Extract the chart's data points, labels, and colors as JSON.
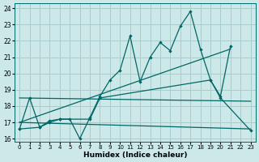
{
  "title": "",
  "xlabel": "Humidex (Indice chaleur)",
  "background_color": "#cde8e8",
  "grid_color": "#a8cccc",
  "line_color": "#006666",
  "xlim": [
    -0.5,
    23.5
  ],
  "ylim": [
    15.8,
    24.3
  ],
  "xticks": [
    0,
    1,
    2,
    3,
    4,
    5,
    6,
    7,
    8,
    9,
    10,
    11,
    12,
    13,
    14,
    15,
    16,
    17,
    18,
    19,
    20,
    21,
    22,
    23
  ],
  "yticks": [
    16,
    17,
    18,
    19,
    20,
    21,
    22,
    23,
    24
  ],
  "line1_x": [
    0,
    1,
    2,
    3,
    4,
    5,
    6,
    7,
    8,
    9,
    10,
    11,
    12,
    13,
    14,
    15,
    16,
    17,
    18,
    19,
    20,
    21
  ],
  "line1_y": [
    16.6,
    18.5,
    16.7,
    17.1,
    17.2,
    17.2,
    16.0,
    17.3,
    18.6,
    19.6,
    20.2,
    22.3,
    19.5,
    21.0,
    21.9,
    21.4,
    22.9,
    23.8,
    21.5,
    19.6,
    18.6,
    21.7
  ],
  "line2_x": [
    0,
    2,
    3,
    4,
    7,
    8,
    19,
    20,
    23
  ],
  "line2_y": [
    16.6,
    16.7,
    17.0,
    17.2,
    17.2,
    18.5,
    19.6,
    18.5,
    16.5
  ],
  "line3_x": [
    0,
    21
  ],
  "line3_y": [
    17.0,
    21.5
  ],
  "line4_x": [
    0,
    23
  ],
  "line4_y": [
    17.0,
    16.6
  ],
  "line5_x": [
    0,
    23
  ],
  "line5_y": [
    18.5,
    18.3
  ]
}
